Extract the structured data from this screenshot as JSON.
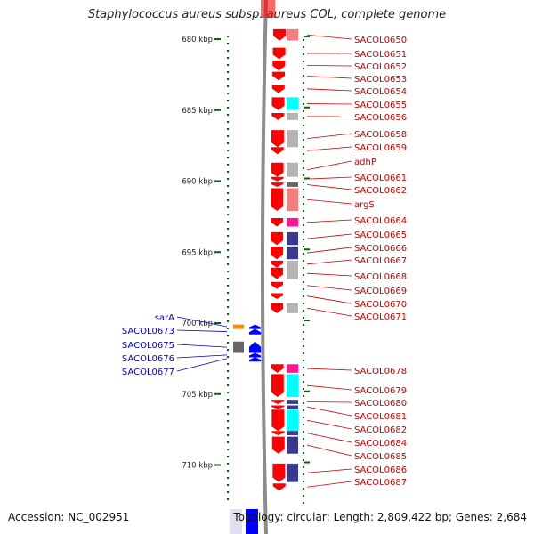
{
  "title": "Staphylococcus aureus subsp. aureus COL, complete genome",
  "accession": "Accession: NC_002951",
  "topology": "Topology: circular; Length: 2,809,422 bp; Genes: 2,684",
  "colors": {
    "plus_gene": "#ff0000",
    "minus_gene": "#0000ff",
    "plus_label": "#cc0000",
    "minus_label": "#0000cc",
    "tick": "#006600",
    "cds_gray": "#b4b4b4",
    "cds_cyan": "#00ffff",
    "cds_magenta": "#ff1493",
    "cds_navy": "#3a3a8c",
    "cds_orange": "#ff8c00",
    "cds_dark": "#666666",
    "cds_pink": "#f08080"
  },
  "ruler": {
    "unit": "kbp",
    "major_ticks": [
      {
        "label": "680 kbp",
        "kbp": 680
      },
      {
        "label": "685 kbp",
        "kbp": 685
      },
      {
        "label": "690 kbp",
        "kbp": 690
      },
      {
        "label": "695 kbp",
        "kbp": 695
      },
      {
        "label": "700 kbp",
        "kbp": 700
      },
      {
        "label": "705 kbp",
        "kbp": 705
      },
      {
        "label": "710 kbp",
        "kbp": 710
      }
    ]
  },
  "plus_strand_genes": [
    {
      "label": "SACOL0650",
      "start_kbp": 679.3,
      "end_kbp": 680.1,
      "cds": "pink"
    },
    {
      "label": "SACOL0651",
      "start_kbp": 680.6,
      "end_kbp": 681.4,
      "cds": "none"
    },
    {
      "label": "SACOL0652",
      "start_kbp": 681.5,
      "end_kbp": 682.2,
      "cds": "none"
    },
    {
      "label": "SACOL0653",
      "start_kbp": 682.3,
      "end_kbp": 682.9,
      "cds": "none"
    },
    {
      "label": "SACOL0654",
      "start_kbp": 683.2,
      "end_kbp": 683.8,
      "cds": "none"
    },
    {
      "label": "SACOL0655",
      "start_kbp": 684.1,
      "end_kbp": 685.0,
      "cds": "cyan"
    },
    {
      "label": "SACOL0656",
      "start_kbp": 685.2,
      "end_kbp": 685.7,
      "cds": "gray"
    },
    {
      "label": "SACOL0658",
      "start_kbp": 686.4,
      "end_kbp": 687.6,
      "cds": "gray"
    },
    {
      "label": "SACOL0659",
      "start_kbp": 687.6,
      "end_kbp": 688.1,
      "cds": "none"
    },
    {
      "label": "adhP",
      "start_kbp": 688.7,
      "end_kbp": 689.7,
      "cds": "gray"
    },
    {
      "label": "SACOL0661",
      "start_kbp": 689.7,
      "end_kbp": 690.0,
      "cds": "none"
    },
    {
      "label": "SACOL0662",
      "start_kbp": 690.1,
      "end_kbp": 690.4,
      "cds": "dark"
    },
    {
      "label": "argS",
      "start_kbp": 690.5,
      "end_kbp": 692.1,
      "cds": "pink"
    },
    {
      "label": "SACOL0664",
      "start_kbp": 692.6,
      "end_kbp": 693.2,
      "cds": "magenta"
    },
    {
      "label": "SACOL0665",
      "start_kbp": 693.6,
      "end_kbp": 694.5,
      "cds": "navy"
    },
    {
      "label": "SACOL0666",
      "start_kbp": 694.6,
      "end_kbp": 695.5,
      "cds": "navy"
    },
    {
      "label": "SACOL0667",
      "start_kbp": 695.6,
      "end_kbp": 696.1,
      "cds": "gray"
    },
    {
      "label": "SACOL0668",
      "start_kbp": 696.1,
      "end_kbp": 696.9,
      "cds": "gray"
    },
    {
      "label": "SACOL0669",
      "start_kbp": 697.1,
      "end_kbp": 697.6,
      "cds": "none"
    },
    {
      "label": "SACOL0670",
      "start_kbp": 697.9,
      "end_kbp": 698.3,
      "cds": "none"
    },
    {
      "label": "SACOL0671",
      "start_kbp": 698.6,
      "end_kbp": 699.3,
      "cds": "gray"
    },
    {
      "label": "SACOL0678",
      "start_kbp": 702.9,
      "end_kbp": 703.5,
      "cds": "magenta"
    },
    {
      "label": "SACOL0679",
      "start_kbp": 703.6,
      "end_kbp": 705.2,
      "cds": "cyan"
    },
    {
      "label": "SACOL0680",
      "start_kbp": 705.4,
      "end_kbp": 705.7,
      "cds": "navy"
    },
    {
      "label": "SACOL0681",
      "start_kbp": 705.8,
      "end_kbp": 706.0,
      "cds": "navy"
    },
    {
      "label": "SACOL0682",
      "start_kbp": 706.1,
      "end_kbp": 707.6,
      "cds": "cyan"
    },
    {
      "label": "SACOL0684",
      "start_kbp": 707.6,
      "end_kbp": 707.9,
      "cds": "navy"
    },
    {
      "label": "SACOL0685",
      "start_kbp": 708.0,
      "end_kbp": 709.2,
      "cds": "navy"
    },
    {
      "label": "SACOL0686",
      "start_kbp": 709.9,
      "end_kbp": 711.2,
      "cds": "navy"
    },
    {
      "label": "SACOL0687",
      "start_kbp": 711.3,
      "end_kbp": 711.8,
      "cds": "none"
    }
  ],
  "minus_strand_genes": [
    {
      "label": "sarA",
      "start_kbp": 700.1,
      "end_kbp": 700.4,
      "cds": "orange"
    },
    {
      "label": "SACOL0673",
      "start_kbp": 700.4,
      "end_kbp": 700.8,
      "cds": "none"
    },
    {
      "label": "SACOL0675",
      "start_kbp": 701.3,
      "end_kbp": 702.1,
      "cds": "dark"
    },
    {
      "label": "SACOL0676",
      "start_kbp": 702.1,
      "end_kbp": 702.4,
      "cds": "none"
    },
    {
      "label": "SACOL0677",
      "start_kbp": 702.4,
      "end_kbp": 702.6,
      "cds": "none"
    }
  ]
}
